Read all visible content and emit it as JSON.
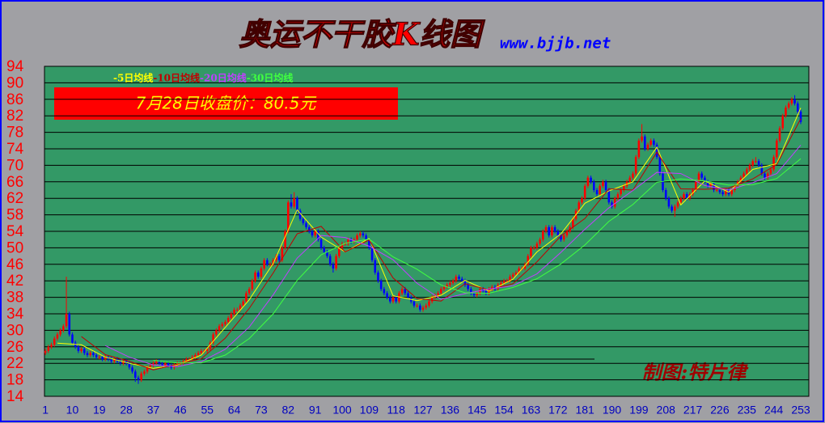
{
  "chart_data": {
    "type": "candlestick",
    "title": "奥运不干胶K线图",
    "subtitle": "www.bjjb.net",
    "annotations": [
      "7月28日收盘价：80.5元",
      "制图:特片律"
    ],
    "up_color": "#ff0000",
    "down_color": "#0000ff",
    "grid": true,
    "xlim": [
      0.7,
      255.7
    ],
    "ylim": [
      14,
      94
    ],
    "xticks": [
      1,
      10,
      19,
      28,
      37,
      46,
      55,
      64,
      73,
      82,
      91,
      100,
      109,
      118,
      127,
      136,
      145,
      154,
      163,
      172,
      181,
      190,
      199,
      208,
      217,
      226,
      235,
      244,
      253
    ],
    "yticks": [
      14,
      18,
      22,
      26,
      30,
      34,
      38,
      42,
      46,
      50,
      54,
      58,
      62,
      66,
      70,
      74,
      78,
      82,
      86,
      90,
      94
    ],
    "x": [
      1,
      2,
      3,
      4,
      5,
      6,
      7,
      8,
      9,
      10,
      11,
      12,
      13,
      14,
      15,
      16,
      17,
      18,
      19,
      20,
      21,
      22,
      23,
      24,
      25,
      26,
      27,
      28,
      29,
      30,
      31,
      32,
      33,
      34,
      35,
      36,
      37,
      38,
      39,
      40,
      41,
      42,
      43,
      44,
      45,
      46,
      47,
      48,
      49,
      50,
      51,
      52,
      53,
      54,
      55,
      56,
      57,
      58,
      59,
      60,
      61,
      62,
      63,
      64,
      65,
      66,
      67,
      68,
      69,
      70,
      71,
      72,
      73,
      74,
      75,
      76,
      77,
      78,
      79,
      80,
      81,
      82,
      83,
      84,
      85,
      86,
      87,
      88,
      89,
      90,
      91,
      92,
      93,
      94,
      95,
      96,
      97,
      98,
      99,
      100,
      101,
      102,
      103,
      104,
      105,
      106,
      107,
      108,
      109,
      110,
      111,
      112,
      113,
      114,
      115,
      116,
      117,
      118,
      119,
      120,
      121,
      122,
      123,
      124,
      125,
      126,
      127,
      128,
      129,
      130,
      131,
      132,
      133,
      134,
      135,
      136,
      137,
      138,
      139,
      140,
      141,
      142,
      143,
      144,
      145,
      146,
      147,
      148,
      149,
      150,
      151,
      152,
      153,
      154,
      155,
      156,
      157,
      158,
      159,
      160,
      161,
      162,
      163,
      164,
      165,
      166,
      167,
      168,
      169,
      170,
      171,
      172,
      173,
      174,
      175,
      176,
      177,
      178,
      179,
      180,
      181,
      182,
      183,
      184,
      185,
      186,
      187,
      188,
      189,
      190,
      191,
      192,
      193,
      194,
      195,
      196,
      197,
      198,
      199,
      200,
      201,
      202,
      203,
      204,
      205,
      206,
      207,
      208,
      209,
      210,
      211,
      212,
      213,
      214,
      215,
      216,
      217,
      218,
      219,
      220,
      221,
      222,
      223,
      224,
      225,
      226,
      227,
      228,
      229,
      230,
      231,
      232,
      233,
      234,
      235,
      236,
      237,
      238,
      239,
      240,
      241,
      242,
      243,
      244,
      245,
      246,
      247,
      248,
      249,
      250,
      251,
      252,
      253
    ],
    "open": [
      24.5,
      25,
      26,
      26.5,
      28,
      29,
      30,
      31,
      34,
      29,
      27,
      26,
      25,
      25.5,
      24.5,
      24,
      24.5,
      24,
      23.5,
      23.5,
      23,
      23.5,
      23,
      22.5,
      23,
      22.5,
      22,
      22.5,
      22,
      21,
      20,
      18.5,
      18,
      19.5,
      20,
      21,
      21.5,
      22,
      22.5,
      22,
      21.5,
      22,
      21.5,
      21,
      21.5,
      22,
      22,
      22.5,
      23,
      23,
      23.5,
      24,
      24.5,
      25,
      25,
      25.5,
      27,
      29,
      30,
      31,
      31.5,
      32,
      33,
      34,
      35,
      35,
      36,
      37,
      39,
      40,
      42,
      44,
      43,
      45,
      47,
      46,
      46,
      47,
      48,
      47,
      50,
      54,
      61,
      60,
      62,
      59,
      57,
      56,
      55,
      54,
      53,
      54,
      52,
      50,
      49,
      48,
      46,
      45,
      48,
      50,
      51,
      51,
      52,
      51.5,
      52,
      53,
      53.5,
      53,
      52,
      50,
      47,
      44,
      42,
      40,
      39,
      38,
      37,
      38,
      37,
      39,
      40,
      39,
      38,
      37,
      36,
      36,
      35,
      35.5,
      36,
      37,
      38,
      38.5,
      39,
      40,
      40.5,
      41,
      41.5,
      42,
      43,
      42.5,
      42,
      41,
      40,
      39,
      38.5,
      39,
      40,
      39.5,
      39,
      40,
      40.5,
      40,
      41,
      41.5,
      42,
      42,
      43,
      43.5,
      44,
      45,
      45,
      46,
      48,
      50,
      50,
      51,
      52,
      54,
      55,
      53,
      55,
      54,
      53,
      52,
      53,
      54,
      55,
      57,
      59,
      61,
      62,
      65,
      67,
      66,
      64,
      63,
      65,
      66,
      64,
      61,
      60,
      62,
      63,
      64,
      65,
      66,
      67,
      68,
      72,
      76,
      77,
      74,
      75,
      76,
      75,
      72,
      68,
      64,
      62,
      60,
      59,
      60,
      61,
      62,
      63,
      62,
      63,
      64,
      66,
      68,
      67,
      66,
      65,
      65.5,
      64,
      64,
      63.5,
      63,
      64,
      63,
      64,
      65,
      66,
      67,
      68,
      69,
      70,
      71,
      71,
      70,
      68,
      67,
      68,
      69,
      72,
      76,
      79,
      82,
      84,
      85,
      86,
      85,
      83
    ],
    "high": [
      25.5,
      26.5,
      27,
      28.5,
      29.5,
      30.5,
      31.5,
      43,
      34.5,
      29.5,
      27.5,
      26.5,
      26,
      26,
      25,
      25,
      25,
      24.5,
      24,
      24,
      24,
      24,
      23.5,
      23.5,
      23.5,
      23,
      23,
      23,
      22.5,
      21.5,
      20.5,
      19,
      20,
      20.5,
      21.5,
      22,
      22.5,
      23,
      23,
      22.5,
      22.5,
      22.5,
      22,
      22,
      22.5,
      22.5,
      23,
      23.5,
      23.5,
      24,
      24.5,
      25,
      25.5,
      25.5,
      26,
      27.5,
      29.5,
      30.5,
      31.5,
      32,
      32.5,
      33.5,
      34.5,
      35.5,
      35.5,
      36.5,
      37.5,
      39.5,
      40.5,
      42.5,
      44.5,
      44.5,
      45.5,
      47.5,
      47.5,
      46.5,
      47.5,
      48.5,
      48.5,
      50.5,
      54.5,
      61.5,
      63,
      63.5,
      62.5,
      59.5,
      57.5,
      56.5,
      55.5,
      54.5,
      54.5,
      54.5,
      52.5,
      50.5,
      49.5,
      48.5,
      46.5,
      48.5,
      50.5,
      51.5,
      51.5,
      52.5,
      52.5,
      52.5,
      53.5,
      54,
      54,
      53.5,
      52.5,
      50.5,
      47.5,
      44.5,
      42.5,
      40.5,
      39.5,
      38.5,
      38.5,
      38.5,
      39.5,
      40.5,
      40.5,
      39.5,
      38.5,
      37.5,
      36.5,
      36.5,
      36,
      36.5,
      37.5,
      38.5,
      39,
      39.5,
      40.5,
      41,
      41.5,
      42,
      42.5,
      43.5,
      43.5,
      43,
      42.5,
      41.5,
      40.5,
      39.5,
      39.5,
      40.5,
      40.5,
      40,
      40.5,
      41,
      41,
      41.5,
      42,
      42.5,
      42.5,
      43.5,
      44,
      44.5,
      45.5,
      45.5,
      46.5,
      48.5,
      50.5,
      50.5,
      51.5,
      52.5,
      54.5,
      55.5,
      55.5,
      55.5,
      55.5,
      54.5,
      53.5,
      53.5,
      54.5,
      55.5,
      57.5,
      59.5,
      61.5,
      62.5,
      65.5,
      67.5,
      67.5,
      66.5,
      64.5,
      65.5,
      66.5,
      66.5,
      64.5,
      61.5,
      62.5,
      63.5,
      64.5,
      65.5,
      66.5,
      67.5,
      68.5,
      72.5,
      76.5,
      80,
      77.5,
      75.5,
      76.5,
      76.5,
      75.5,
      72.5,
      68.5,
      64.5,
      62.5,
      60.5,
      60.5,
      61.5,
      62.5,
      63.5,
      63.5,
      63.5,
      64.5,
      66.5,
      68.5,
      68.5,
      67.5,
      66.5,
      66,
      66,
      64.5,
      64.5,
      64,
      64.5,
      64.5,
      64.5,
      65.5,
      66.5,
      67.5,
      68.5,
      69.5,
      70.5,
      71.5,
      72,
      71.5,
      70.5,
      68.5,
      68.5,
      69.5,
      72.5,
      76.5,
      79.5,
      82.5,
      84.5,
      85.5,
      86.5,
      87,
      85.5,
      83.5
    ],
    "low": [
      24,
      24.5,
      25.5,
      26,
      27.5,
      28.5,
      29.5,
      30.5,
      28.5,
      26.5,
      25.5,
      24.5,
      24.5,
      24,
      23.5,
      23.5,
      23.5,
      23,
      23,
      22.5,
      22.5,
      22.5,
      22,
      22,
      22,
      21.5,
      21.5,
      21.5,
      20.5,
      19.5,
      17.5,
      17,
      17.5,
      19,
      19.5,
      20.5,
      21,
      21.5,
      21.5,
      21,
      21,
      21,
      20.5,
      20.5,
      21,
      21.5,
      21.5,
      22,
      22.5,
      22.5,
      23,
      23.5,
      24,
      24.5,
      24.5,
      25,
      26.5,
      28.5,
      29.5,
      30.5,
      31,
      31.5,
      32.5,
      33.5,
      34.5,
      34.5,
      35.5,
      36.5,
      38.5,
      39.5,
      41.5,
      42.5,
      42.5,
      44.5,
      45.5,
      45.5,
      45.5,
      46.5,
      46.5,
      46.5,
      49.5,
      53.5,
      59.5,
      59.5,
      58.5,
      56.5,
      55.5,
      54.5,
      53.5,
      52.5,
      52.5,
      51.5,
      49.5,
      48.5,
      47.5,
      45.5,
      44,
      44.5,
      47.5,
      49.5,
      50.5,
      50.5,
      51,
      51,
      51.5,
      52.5,
      52.5,
      51.5,
      49.5,
      46.5,
      43.5,
      41.5,
      39.5,
      38.5,
      37.5,
      36.5,
      36.5,
      36.5,
      36.5,
      38.5,
      38.5,
      37.5,
      36.5,
      35.5,
      35.5,
      34.5,
      34.5,
      35,
      35.5,
      36.5,
      37.5,
      38,
      38.5,
      39.5,
      40,
      40.5,
      41,
      41.5,
      42,
      41.5,
      40.5,
      39.5,
      38.5,
      38,
      38,
      38.5,
      39,
      38.5,
      38.5,
      39.5,
      39.5,
      39.5,
      40.5,
      41,
      41.5,
      41.5,
      42.5,
      43,
      43.5,
      44.5,
      44.5,
      45.5,
      47.5,
      49.5,
      49.5,
      50.5,
      51.5,
      53.5,
      52.5,
      52.5,
      53.5,
      52.5,
      51.5,
      51.5,
      52.5,
      53.5,
      54.5,
      56.5,
      58.5,
      60.5,
      61.5,
      64.5,
      65.5,
      63.5,
      62.5,
      62.5,
      64.5,
      63.5,
      60.5,
      59.5,
      59.5,
      61.5,
      62.5,
      63.5,
      64.5,
      65.5,
      66.5,
      67.5,
      71.5,
      75.5,
      73.5,
      73.5,
      74.5,
      74.5,
      71.5,
      67.5,
      63.5,
      61.5,
      59.5,
      58.5,
      57.5,
      59.5,
      60.5,
      61.5,
      61.5,
      61.5,
      62.5,
      63.5,
      65.5,
      66.5,
      65.5,
      64.5,
      64.5,
      63.5,
      63.5,
      63,
      62.5,
      62.5,
      62.5,
      62.5,
      63.5,
      64.5,
      65.5,
      66.5,
      67.5,
      68.5,
      69.5,
      70.5,
      69.5,
      67.5,
      66.5,
      66.5,
      67.5,
      68.5,
      71.5,
      75.5,
      78.5,
      81.5,
      83.5,
      84.5,
      84.5,
      82.5,
      80
    ],
    "close": [
      25,
      26,
      26.5,
      28,
      29,
      30,
      31,
      34,
      29,
      27,
      26,
      25,
      25.5,
      24.5,
      24,
      24.5,
      24,
      23.5,
      23.5,
      23,
      23.5,
      23,
      22.5,
      23,
      22.5,
      22,
      22.5,
      22,
      21,
      20,
      18.5,
      18,
      19.5,
      20,
      21,
      21.5,
      22,
      22.5,
      22,
      21.5,
      22,
      21.5,
      21,
      21.5,
      22,
      22,
      22.5,
      23,
      23,
      23.5,
      24,
      24.5,
      25,
      25,
      25.5,
      27,
      29,
      30,
      31,
      31.5,
      32,
      33,
      34,
      35,
      35,
      36,
      37,
      39,
      40,
      42,
      44,
      43,
      45,
      47,
      46,
      46,
      47,
      48,
      47,
      50,
      54,
      61,
      60,
      62,
      59,
      57,
      56,
      55,
      54,
      53,
      54,
      52,
      50,
      49,
      48,
      46,
      45,
      48,
      50,
      51,
      51,
      52,
      51.5,
      52,
      53,
      53.5,
      53,
      52,
      50,
      47,
      44,
      42,
      40,
      39,
      38,
      37,
      38,
      37,
      39,
      40,
      39,
      38,
      37,
      36,
      36,
      35,
      35.5,
      36,
      37,
      38,
      38.5,
      39,
      40,
      40.5,
      41,
      41.5,
      42,
      43,
      42.5,
      42,
      41,
      40,
      39,
      38.5,
      39,
      40,
      39.5,
      39,
      40,
      40.5,
      40,
      41,
      41.5,
      42,
      42,
      43,
      43.5,
      44,
      45,
      45,
      46,
      48,
      50,
      50,
      51,
      52,
      54,
      55,
      53,
      55,
      54,
      53,
      52,
      53,
      54,
      55,
      57,
      59,
      61,
      62,
      65,
      67,
      66,
      64,
      63,
      65,
      66,
      64,
      61,
      60,
      62,
      63,
      64,
      65,
      66,
      67,
      68,
      72,
      76,
      77,
      74,
      75,
      76,
      75,
      72,
      68,
      64,
      62,
      60,
      59,
      60,
      61,
      62,
      63,
      62,
      63,
      64,
      66,
      68,
      67,
      66,
      65,
      65.5,
      64,
      64,
      63.5,
      63,
      64,
      63,
      64,
      65,
      66,
      67,
      68,
      69,
      70,
      71,
      71,
      70,
      68,
      67,
      68,
      69,
      72,
      76,
      79,
      82,
      84,
      85,
      86,
      85,
      83,
      80.5
    ],
    "series": [
      {
        "name": "-5日均线",
        "color": "#ffff00",
        "x": [
          5,
          13,
          21,
          29,
          37,
          45,
          53,
          61,
          69,
          77,
          85,
          93,
          101,
          109,
          117,
          125,
          133,
          141,
          149,
          157,
          165,
          173,
          181,
          189,
          197,
          205,
          213,
          221,
          229,
          237,
          245,
          253
        ],
        "values": [
          26.9,
          26.5,
          23.5,
          22,
          20.8,
          21.6,
          24,
          30.7,
          37.4,
          46.2,
          59.2,
          52.6,
          49,
          52.3,
          38.4,
          37.2,
          38.5,
          42.1,
          39.5,
          42.4,
          49,
          53.4,
          60.8,
          63.8,
          66,
          74.4,
          60.4,
          66.2,
          63.5,
          69,
          70.4,
          83.9
        ]
      },
      {
        "name": "-10日均线",
        "color": "#c00000",
        "x": [
          13,
          21,
          29,
          37,
          45,
          53,
          61,
          69,
          77,
          85,
          93,
          101,
          109,
          117,
          125,
          133,
          141,
          149,
          157,
          165,
          173,
          181,
          189,
          197,
          205,
          213,
          221,
          229,
          237,
          245,
          253
        ],
        "values": [
          28.5,
          24.1,
          22.5,
          20.4,
          21.8,
          23.1,
          28.1,
          35.3,
          43.9,
          53.4,
          55.2,
          49,
          51.9,
          42.7,
          37.7,
          37.1,
          41.3,
          39.8,
          41.3,
          46.6,
          52.9,
          57.1,
          64.3,
          64,
          73.2,
          64.3,
          64.2,
          64.5,
          66.7,
          70.2,
          81.3
        ]
      },
      {
        "name": "-20日均线",
        "color": "#c040ff",
        "x": [
          21,
          29,
          37,
          45,
          53,
          61,
          69,
          77,
          85,
          93,
          101,
          109,
          117,
          125,
          133,
          141,
          149,
          157,
          165,
          173,
          181,
          189,
          197,
          205,
          213,
          221,
          229,
          237,
          245,
          253
        ],
        "values": [
          26.3,
          23.5,
          21.6,
          21.2,
          22.4,
          25.4,
          30.8,
          38.6,
          47.5,
          53,
          52.5,
          50.4,
          47.1,
          41.4,
          37.5,
          38.9,
          40,
          40.8,
          43.7,
          48.9,
          54.5,
          59.7,
          63.9,
          68.3,
          68,
          65.1,
          64,
          65.8,
          68,
          74.9
        ]
      },
      {
        "name": "-30日均线",
        "color": "#40ff40",
        "x": [
          37,
          45,
          53,
          61,
          69,
          77,
          85,
          93,
          101,
          109,
          117,
          125,
          133,
          141,
          149,
          157,
          165,
          173,
          181,
          189,
          197,
          205,
          213,
          221,
          229,
          237,
          245,
          253
        ],
        "values": [
          22.7,
          22.1,
          22.1,
          24,
          28,
          34,
          42.1,
          48.3,
          51.1,
          52.1,
          47.8,
          44.8,
          41,
          39.1,
          39,
          40.4,
          42.5,
          46.1,
          50.7,
          56.4,
          60.5,
          65.9,
          66.7,
          66.2,
          65.2,
          65.3,
          66.8,
          71.6
        ]
      }
    ]
  }
}
